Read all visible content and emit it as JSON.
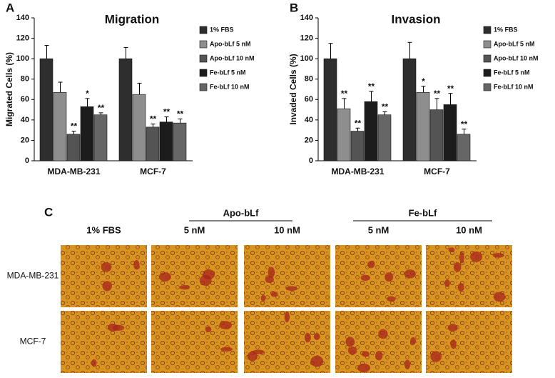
{
  "chart_data": [
    {
      "type": "bar",
      "panel": "A",
      "title": "Migration",
      "y_label": "Migrated Cells (%)",
      "categories": [
        "MDA-MB-231",
        "MCF-7"
      ],
      "series": [
        {
          "name": "1% FBS",
          "color": "#2e2e2e",
          "values": [
            100,
            100
          ],
          "errors": [
            13,
            11
          ],
          "significance": [
            null,
            null
          ]
        },
        {
          "name": "Apo-bLf 5 nM",
          "color": "#8e8e8e",
          "values": [
            67,
            65
          ],
          "errors": [
            10,
            11
          ],
          "significance": [
            null,
            null
          ]
        },
        {
          "name": "Apo-bLf 10 nM",
          "color": "#545454",
          "values": [
            26,
            33
          ],
          "errors": [
            3,
            3
          ],
          "significance": [
            "**",
            "**"
          ]
        },
        {
          "name": "Fe-bLf 5 nM",
          "color": "#1c1c1c",
          "values": [
            53,
            38
          ],
          "errors": [
            8,
            5
          ],
          "significance": [
            "*",
            "**"
          ]
        },
        {
          "name": "Fe-bLf 10 nM",
          "color": "#666666",
          "values": [
            45,
            37
          ],
          "errors": [
            2,
            4
          ],
          "significance": [
            "**",
            "**"
          ]
        }
      ],
      "ylim": [
        0,
        140
      ],
      "yticks": [
        0,
        20,
        40,
        60,
        80,
        100,
        120,
        140
      ],
      "legend": "right"
    },
    {
      "type": "bar",
      "panel": "B",
      "title": "Invasion",
      "y_label": "Invaded Cells (%)",
      "categories": [
        "MDA-MB-231",
        "MCF-7"
      ],
      "series": [
        {
          "name": "1% FBS",
          "color": "#2e2e2e",
          "values": [
            100,
            100
          ],
          "errors": [
            15,
            16
          ],
          "significance": [
            null,
            null
          ]
        },
        {
          "name": "Apo-bLf 5 nM",
          "color": "#8e8e8e",
          "values": [
            51,
            67
          ],
          "errors": [
            10,
            6
          ],
          "significance": [
            "**",
            "*"
          ]
        },
        {
          "name": "Apo-bLf 10 nM",
          "color": "#545454",
          "values": [
            29,
            50
          ],
          "errors": [
            3,
            11
          ],
          "significance": [
            "**",
            "**"
          ]
        },
        {
          "name": "Fe-bLf 5 nM",
          "color": "#1c1c1c",
          "values": [
            58,
            55
          ],
          "errors": [
            10,
            11
          ],
          "significance": [
            "**",
            "**"
          ]
        },
        {
          "name": "Fe-bLf 10 nM",
          "color": "#666666",
          "values": [
            45,
            26
          ],
          "errors": [
            3,
            5
          ],
          "significance": [
            "**",
            "**"
          ]
        }
      ],
      "ylim": [
        0,
        140
      ],
      "yticks": [
        0,
        20,
        40,
        60,
        80,
        100,
        120,
        140
      ],
      "legend": "right"
    }
  ],
  "panel_c": {
    "letter": "C",
    "groups": [
      "Apo-bLf",
      "Fe-bLf"
    ],
    "columns": [
      "1% FBS",
      "5 nM",
      "10 nM",
      "5 nM",
      "10 nM"
    ],
    "rows": [
      "MDA-MB-231",
      "MCF-7"
    ]
  }
}
